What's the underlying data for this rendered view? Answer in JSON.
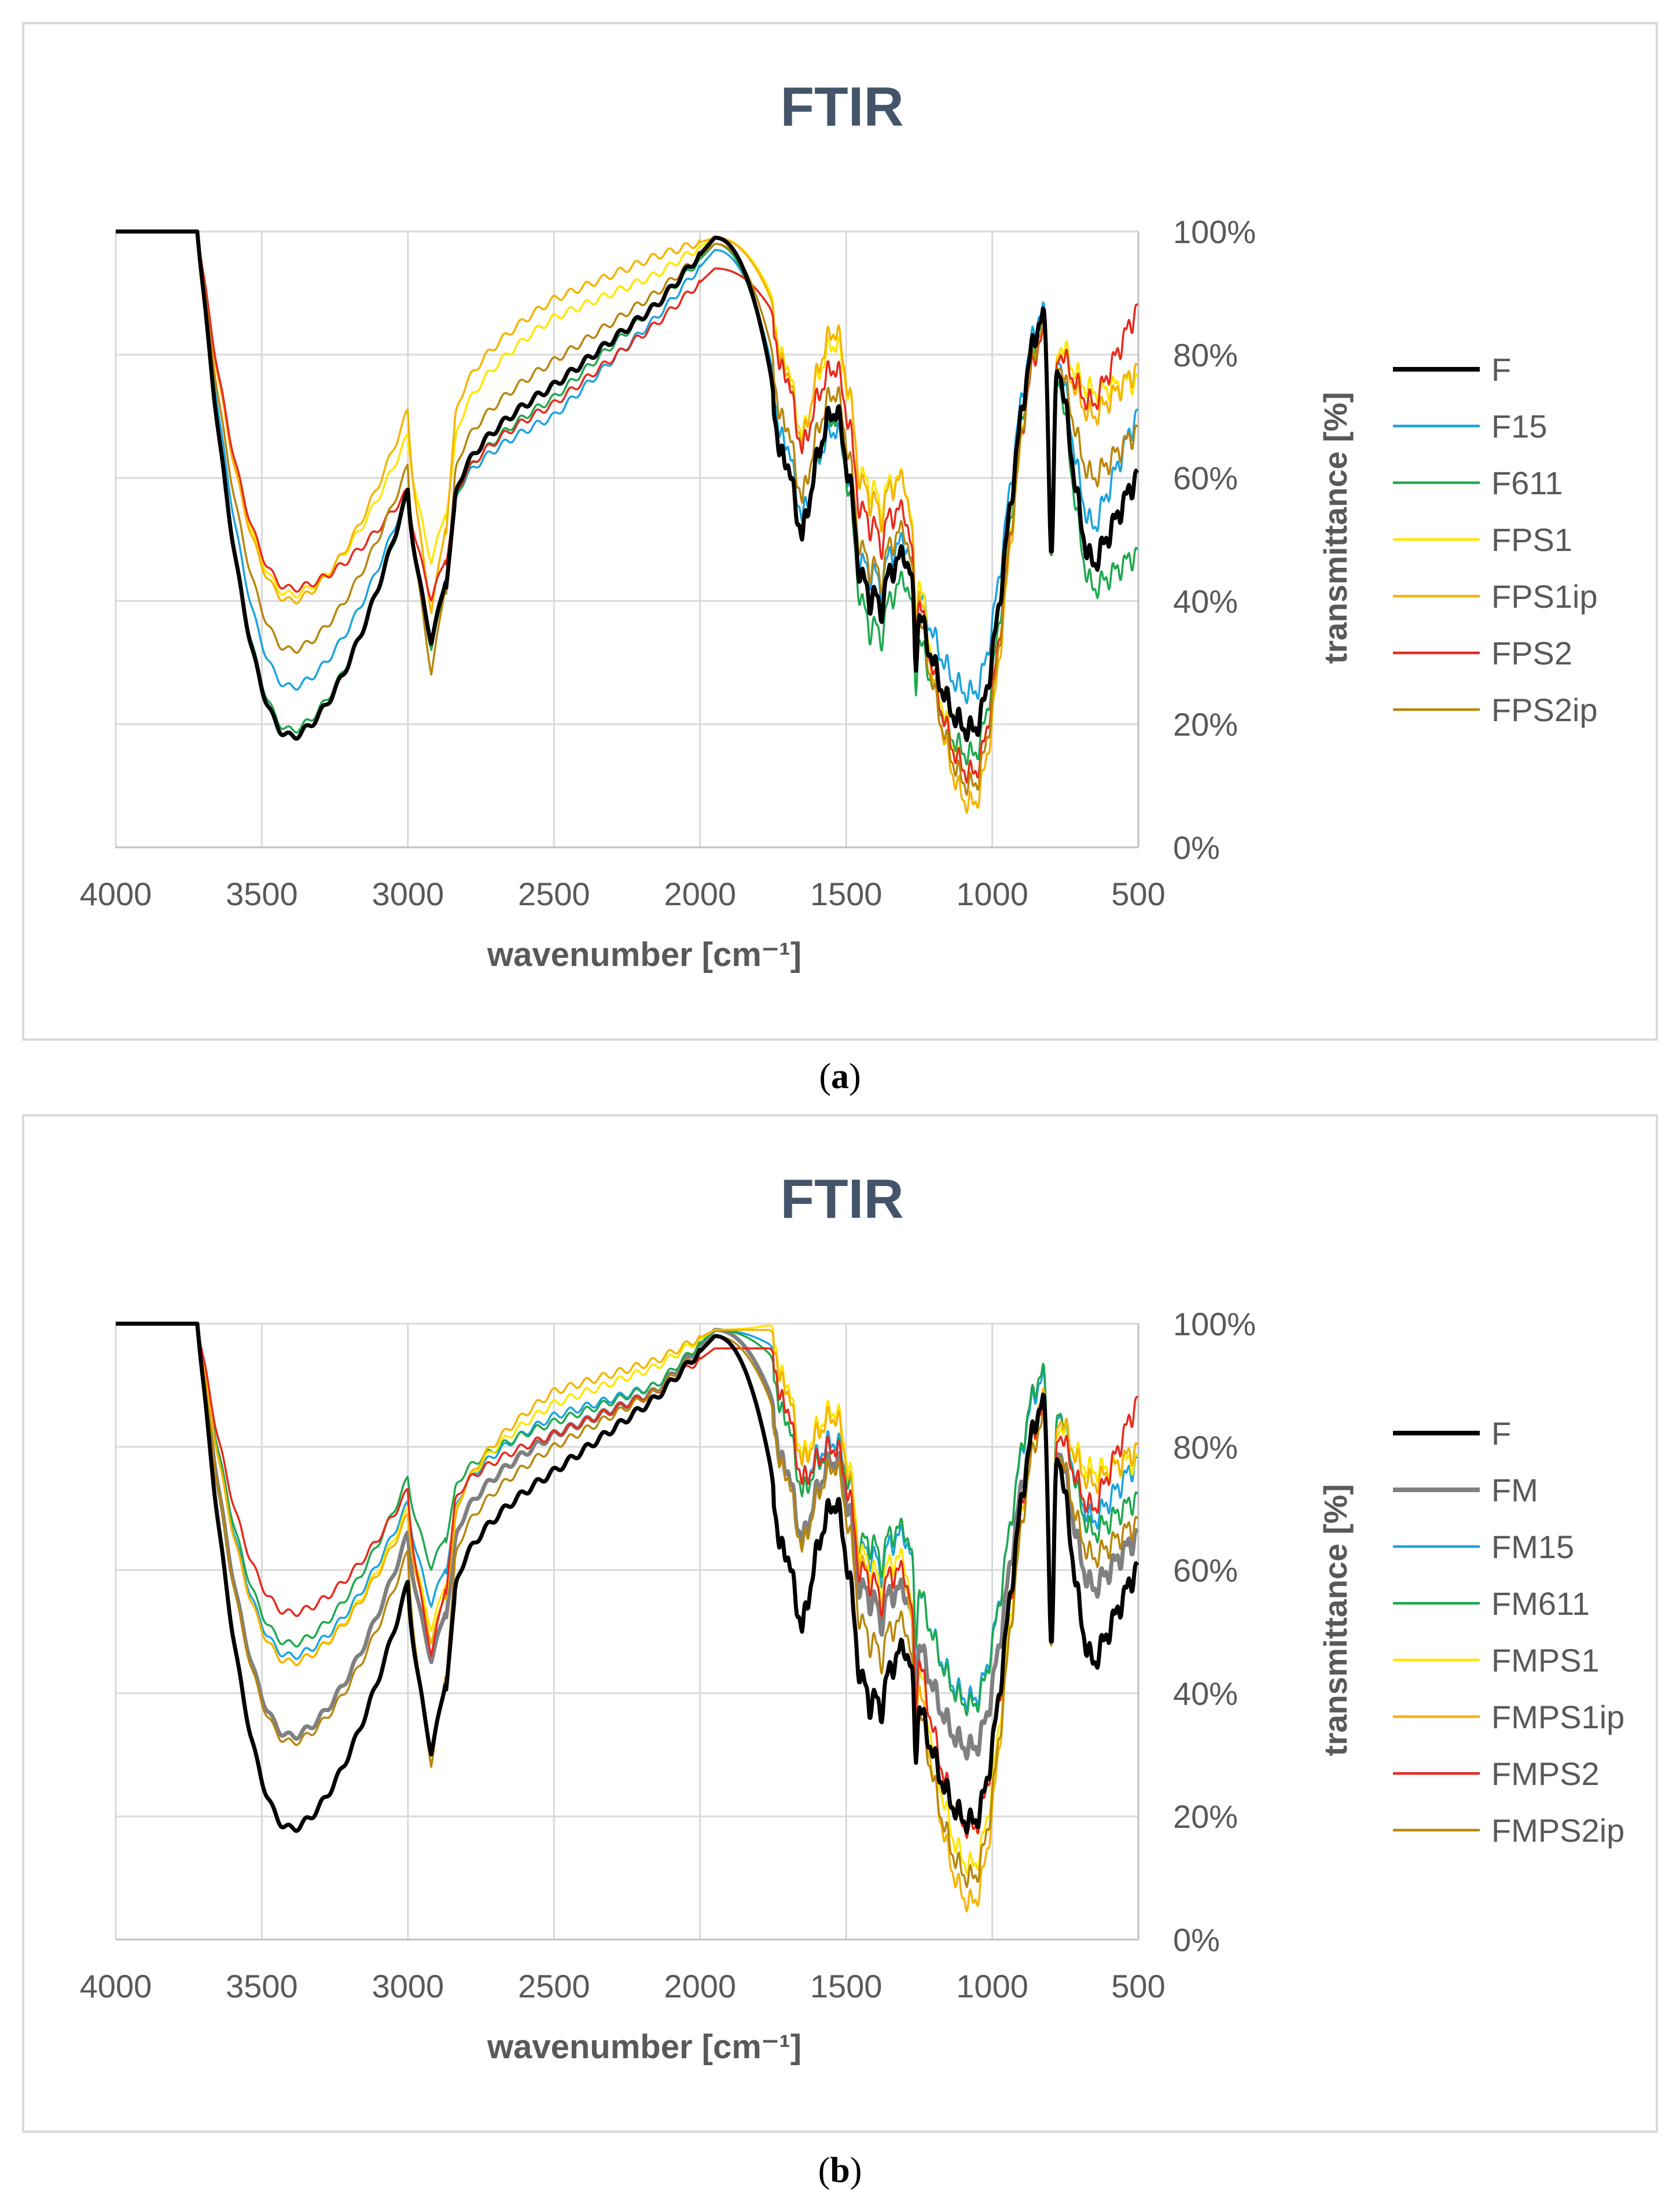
{
  "chart_data": [
    {
      "panel": "a",
      "type": "line",
      "title": "FTIR",
      "xlabel": "wavenumber [cm⁻¹]",
      "ylabel": "transmittance [%]",
      "xlim": [
        4000,
        500
      ],
      "ylim": [
        0,
        100
      ],
      "xticks": [
        "4000",
        "3500",
        "3000",
        "2500",
        "2000",
        "1500",
        "1000",
        "500"
      ],
      "yticks": [
        "0%",
        "20%",
        "40%",
        "60%",
        "80%",
        "100%"
      ],
      "legend_position": "right",
      "series": [
        {
          "name": "F",
          "color": "#000000",
          "width": 7,
          "min3400": 18,
          "v3000": 58,
          "dip2900": 35,
          "v2500": 75,
          "v2150": 88,
          "v1950": 99,
          "v1650": 50,
          "v1530": 71,
          "v1420": 40,
          "v1300": 48,
          "v1070": 19,
          "v820": 86,
          "v650": 46,
          "v500": 61
        },
        {
          "name": "F15",
          "color": "#1ca3df",
          "width": 3.5,
          "min3400": 26,
          "v3000": 58,
          "dip2900": 36,
          "v2500": 70,
          "v2150": 86,
          "v1950": 97,
          "v1650": 53,
          "v1530": 68,
          "v1420": 44,
          "v1300": 50,
          "v1070": 25,
          "v820": 87,
          "v650": 52,
          "v500": 71
        },
        {
          "name": "F611",
          "color": "#1fa84f",
          "width": 3.5,
          "min3400": 19,
          "v3000": 57,
          "dip2900": 34,
          "v2500": 73,
          "v2150": 88,
          "v1950": 98,
          "v1650": 50,
          "v1530": 70,
          "v1420": 35,
          "v1300": 44,
          "v1070": 15,
          "v820": 85,
          "v650": 42,
          "v500": 48
        },
        {
          "name": "FPS1",
          "color": "#ffe600",
          "width": 3.5,
          "min3400": 41,
          "v3000": 67,
          "dip2900": 48,
          "v2500": 86,
          "v2150": 93,
          "v1950": 99,
          "v1650": 66,
          "v1530": 82,
          "v1420": 58,
          "v1300": 60,
          "v1070": 12,
          "v820": 84,
          "v650": 74,
          "v500": 76
        },
        {
          "name": "FPS1ip",
          "color": "#f5b400",
          "width": 3.5,
          "min3400": 40,
          "v3000": 71,
          "dip2900": 40,
          "v2500": 89,
          "v2150": 96,
          "v1950": 99,
          "v1650": 65,
          "v1530": 84,
          "v1420": 56,
          "v1300": 60,
          "v1070": 7,
          "v820": 84,
          "v650": 70,
          "v500": 78
        },
        {
          "name": "FPS2",
          "color": "#e8291c",
          "width": 3.5,
          "min3400": 42,
          "v3000": 58,
          "dip2900": 42,
          "v2500": 72,
          "v2150": 85,
          "v1950": 94,
          "v1650": 64,
          "v1530": 78,
          "v1420": 52,
          "v1300": 55,
          "v1070": 12,
          "v820": 83,
          "v650": 72,
          "v500": 88
        },
        {
          "name": "FPS2ip",
          "color": "#b8860b",
          "width": 3.5,
          "min3400": 32,
          "v3000": 62,
          "dip2900": 30,
          "v2500": 79,
          "v2150": 90,
          "v1950": 98,
          "v1650": 56,
          "v1530": 74,
          "v1420": 45,
          "v1300": 52,
          "v1070": 10,
          "v820": 84,
          "v650": 60,
          "v500": 68
        }
      ]
    },
    {
      "panel": "b",
      "type": "line",
      "title": "FTIR",
      "xlabel": "wavenumber [cm⁻¹]",
      "ylabel": "transmittance [%]",
      "xlim": [
        4000,
        500
      ],
      "ylim": [
        0,
        100
      ],
      "xticks": [
        "4000",
        "3500",
        "3000",
        "2500",
        "2000",
        "1500",
        "1000",
        "500"
      ],
      "yticks": [
        "0%",
        "20%",
        "40%",
        "60%",
        "80%",
        "100%"
      ],
      "legend_position": "right",
      "series": [
        {
          "name": "F",
          "color": "#000000",
          "width": 7,
          "min3400": 18,
          "v3000": 58,
          "dip2900": 32,
          "v2500": 76,
          "v2150": 88,
          "v1950": 98,
          "v1650": 50,
          "v1530": 71,
          "v1420": 38,
          "v1300": 48,
          "v1070": 19,
          "v820": 87,
          "v650": 45,
          "v500": 61
        },
        {
          "name": "FM",
          "color": "#808080",
          "width": 7,
          "min3400": 33,
          "v3000": 66,
          "dip2900": 47,
          "v2500": 82,
          "v2150": 89,
          "v1950": 99,
          "v1650": 64,
          "v1530": 78,
          "v1420": 55,
          "v1300": 57,
          "v1070": 31,
          "v820": 86,
          "v650": 57,
          "v500": 66
        },
        {
          "name": "FM15",
          "color": "#1ca3df",
          "width": 3.5,
          "min3400": 46,
          "v3000": 71,
          "dip2900": 56,
          "v2500": 85,
          "v2150": 90,
          "v1950": 99,
          "v1650": 74,
          "v1530": 81,
          "v1420": 62,
          "v1300": 66,
          "v1070": 39,
          "v820": 91,
          "v650": 68,
          "v500": 78
        },
        {
          "name": "FM611",
          "color": "#1fa84f",
          "width": 3.5,
          "min3400": 48,
          "v3000": 75,
          "dip2900": 62,
          "v2500": 84,
          "v2150": 90,
          "v1950": 99,
          "v1650": 72,
          "v1530": 80,
          "v1420": 64,
          "v1300": 67,
          "v1070": 38,
          "v820": 92,
          "v650": 66,
          "v500": 72
        },
        {
          "name": "FMPS1",
          "color": "#ffe600",
          "width": 3.5,
          "min3400": 45,
          "v3000": 70,
          "dip2900": 52,
          "v2500": 87,
          "v2150": 93,
          "v1950": 99,
          "v1650": 78,
          "v1530": 86,
          "v1420": 60,
          "v1300": 62,
          "v1070": 12,
          "v820": 86,
          "v650": 76,
          "v500": 78
        },
        {
          "name": "FMPS1ip",
          "color": "#f5b400",
          "width": 3.5,
          "min3400": 45,
          "v3000": 69,
          "dip2900": 50,
          "v2500": 89,
          "v2150": 94,
          "v1950": 99,
          "v1650": 77,
          "v1530": 85,
          "v1420": 58,
          "v1300": 60,
          "v1070": 6,
          "v820": 88,
          "v650": 74,
          "v500": 80
        },
        {
          "name": "FMPS2",
          "color": "#e8291c",
          "width": 3.5,
          "min3400": 53,
          "v3000": 73,
          "dip2900": 48,
          "v2500": 82,
          "v2150": 89,
          "v1950": 96,
          "v1650": 74,
          "v1530": 80,
          "v1420": 58,
          "v1300": 60,
          "v1070": 18,
          "v820": 86,
          "v650": 70,
          "v500": 88
        },
        {
          "name": "FMPS2ip",
          "color": "#b8860b",
          "width": 3.5,
          "min3400": 32,
          "v3000": 63,
          "dip2900": 30,
          "v2500": 80,
          "v2150": 89,
          "v1950": 98,
          "v1650": 63,
          "v1530": 77,
          "v1420": 48,
          "v1300": 52,
          "v1070": 10,
          "v820": 84,
          "v650": 62,
          "v500": 68
        }
      ]
    }
  ],
  "captions": {
    "a": "a",
    "b": "b"
  }
}
